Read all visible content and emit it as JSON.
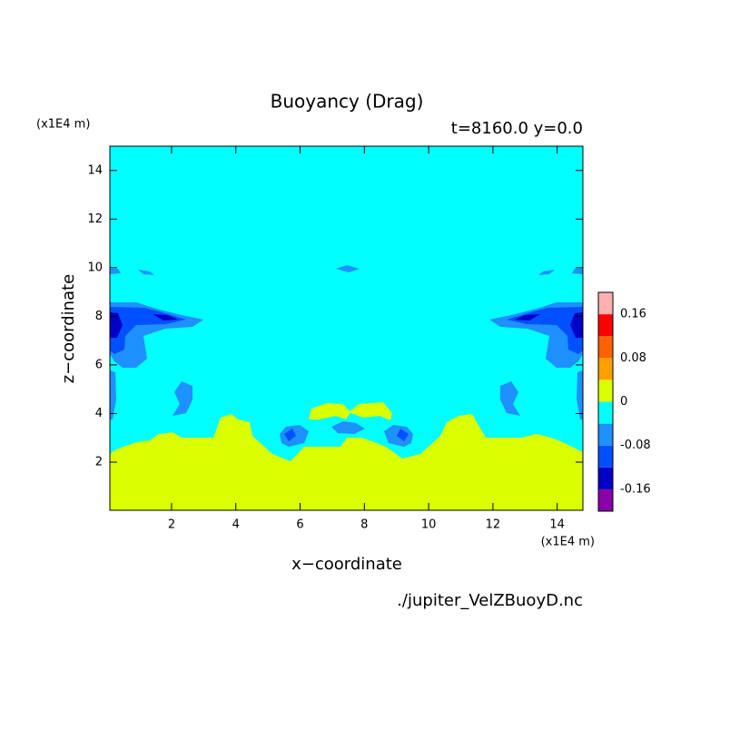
{
  "chart_data": {
    "type": "contour",
    "title": "Buoyancy (Drag)",
    "subtitle": "t=8160.0 y=0.0",
    "x_label": "x−coordinate",
    "y_label": "z−coordinate",
    "x_unit": "(x1E4 m)",
    "y_unit": "(x1E4 m)",
    "source": "./jupiter_VelZBuoyD.nc",
    "xlim": [
      0.08,
      14.8
    ],
    "ylim": [
      0.02,
      15
    ],
    "xticks": [
      2,
      4,
      6,
      8,
      10,
      12,
      14
    ],
    "yticks": [
      2,
      4,
      6,
      8,
      10,
      12,
      14
    ],
    "levels": [
      -0.2,
      -0.16,
      -0.12,
      -0.08,
      -0.04,
      0,
      0.04,
      0.08,
      0.12,
      0.16,
      0.2
    ],
    "colors": [
      "#8a00a8",
      "#0000c8",
      "#0050ff",
      "#1e90ff",
      "#00ffff",
      "#d9ff00",
      "#ffa000",
      "#ff6000",
      "#ff0000",
      "#ffb0b0"
    ],
    "colorbar_ticks": [
      -0.16,
      -0.08,
      0,
      0.08,
      0.16
    ]
  }
}
